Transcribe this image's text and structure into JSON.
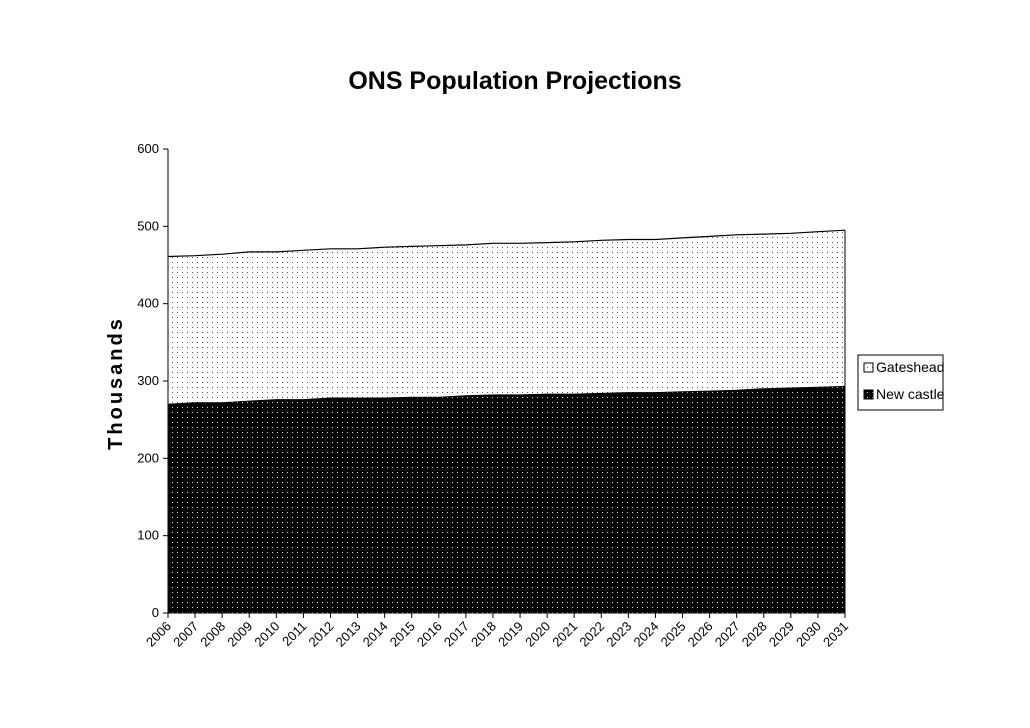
{
  "chart_data": {
    "type": "area",
    "stacked": true,
    "title": "ONS Population Projections",
    "xlabel": "",
    "ylabel": "Thousands",
    "ylim": [
      0,
      600
    ],
    "yticks": [
      "0",
      "100",
      "200",
      "300",
      "400",
      "500",
      "600"
    ],
    "x": [
      "2006",
      "2007",
      "2008",
      "2009",
      "2010",
      "2011",
      "2012",
      "2013",
      "2014",
      "2015",
      "2016",
      "2017",
      "2018",
      "2019",
      "2020",
      "2021",
      "2022",
      "2023",
      "2024",
      "2025",
      "2026",
      "2027",
      "2028",
      "2029",
      "2030",
      "2031"
    ],
    "series": [
      {
        "name": "New castle",
        "fill": "#000000",
        "values": [
          270,
          272,
          272,
          274,
          276,
          276,
          278,
          278,
          278,
          279,
          279,
          281,
          282,
          282,
          283,
          283,
          284,
          285,
          285,
          286,
          287,
          288,
          290,
          291,
          292,
          293
        ]
      },
      {
        "name": "Gateshead",
        "fill": "#ffffff",
        "values": [
          191,
          190,
          192,
          193,
          191,
          193,
          193,
          193,
          195,
          195,
          196,
          195,
          196,
          196,
          196,
          197,
          198,
          198,
          198,
          199,
          200,
          201,
          200,
          200,
          201,
          202
        ]
      }
    ],
    "legend_position": "right",
    "grid": false
  }
}
